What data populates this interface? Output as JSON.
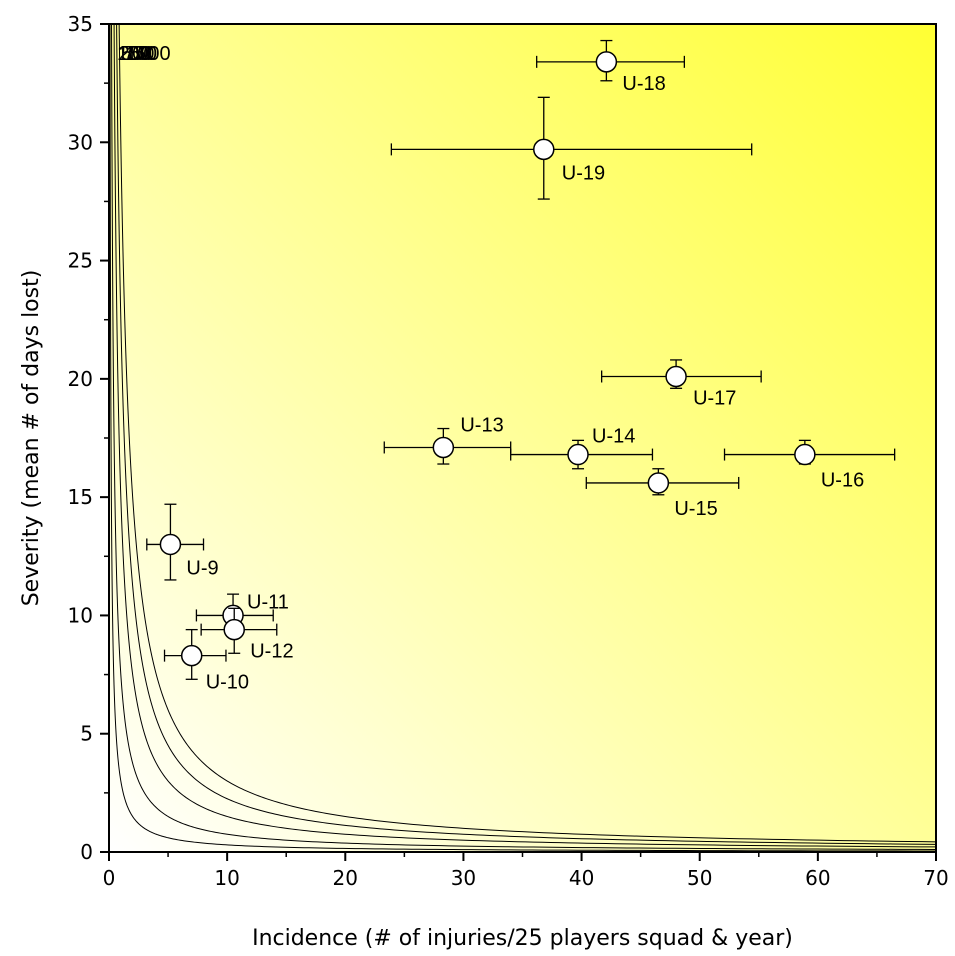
{
  "chart_data": {
    "type": "scatter",
    "xlabel": "Incidence (# of injuries/25 players squad & year)",
    "ylabel": "Severity (mean # of days lost)",
    "xlim": [
      0,
      70
    ],
    "ylim": [
      0,
      35
    ],
    "xticks": [
      0,
      10,
      20,
      30,
      40,
      50,
      60,
      70
    ],
    "yticks": [
      0,
      5,
      10,
      15,
      20,
      25,
      30,
      35
    ],
    "xtick_labels": [
      "0",
      "10",
      "20",
      "30",
      "40",
      "50",
      "60",
      "70"
    ],
    "ytick_labels": [
      "0",
      "5",
      "10",
      "15",
      "20",
      "25",
      "30",
      "35"
    ],
    "grid": false,
    "background": {
      "low_color": "#ffffff",
      "high_color": "#ffff33"
    },
    "iso_burden_curves": [
      {
        "value": 100,
        "label": "100"
      },
      {
        "value": 250,
        "label": "250"
      },
      {
        "value": 500,
        "label": "500"
      },
      {
        "value": 750,
        "label": "750"
      },
      {
        "value": 1000,
        "label": "1000"
      }
    ],
    "points": [
      {
        "label": "U-9",
        "x": 5.2,
        "y": 13.0,
        "x_err": [
          3.2,
          8.0
        ],
        "y_err": [
          11.5,
          14.7
        ]
      },
      {
        "label": "U-10",
        "x": 7.0,
        "y": 8.3,
        "x_err": [
          4.7,
          9.9
        ],
        "y_err": [
          7.3,
          9.4
        ]
      },
      {
        "label": "U-11",
        "x": 10.5,
        "y": 10.0,
        "x_err": [
          7.4,
          13.9
        ],
        "y_err": [
          9.2,
          10.9
        ]
      },
      {
        "label": "U-12",
        "x": 10.6,
        "y": 9.4,
        "x_err": [
          7.8,
          14.2
        ],
        "y_err": [
          8.4,
          10.3
        ]
      },
      {
        "label": "U-13",
        "x": 28.3,
        "y": 17.1,
        "x_err": [
          23.3,
          34.0
        ],
        "y_err": [
          16.4,
          17.9
        ]
      },
      {
        "label": "U-14",
        "x": 39.7,
        "y": 16.8,
        "x_err": [
          34.0,
          46.0
        ],
        "y_err": [
          16.2,
          17.4
        ]
      },
      {
        "label": "U-15",
        "x": 46.5,
        "y": 15.6,
        "x_err": [
          40.4,
          53.3
        ],
        "y_err": [
          15.1,
          16.2
        ]
      },
      {
        "label": "U-16",
        "x": 58.9,
        "y": 16.8,
        "x_err": [
          52.1,
          66.5
        ],
        "y_err": [
          16.4,
          17.4
        ]
      },
      {
        "label": "U-17",
        "x": 48.0,
        "y": 20.1,
        "x_err": [
          41.7,
          55.2
        ],
        "y_err": [
          19.6,
          20.8
        ]
      },
      {
        "label": "U-18",
        "x": 42.1,
        "y": 33.4,
        "x_err": [
          36.2,
          48.7
        ],
        "y_err": [
          32.6,
          34.3
        ]
      },
      {
        "label": "U-19",
        "x": 36.8,
        "y": 29.7,
        "x_err": [
          23.9,
          54.4
        ],
        "y_err": [
          27.6,
          31.9
        ]
      }
    ]
  }
}
